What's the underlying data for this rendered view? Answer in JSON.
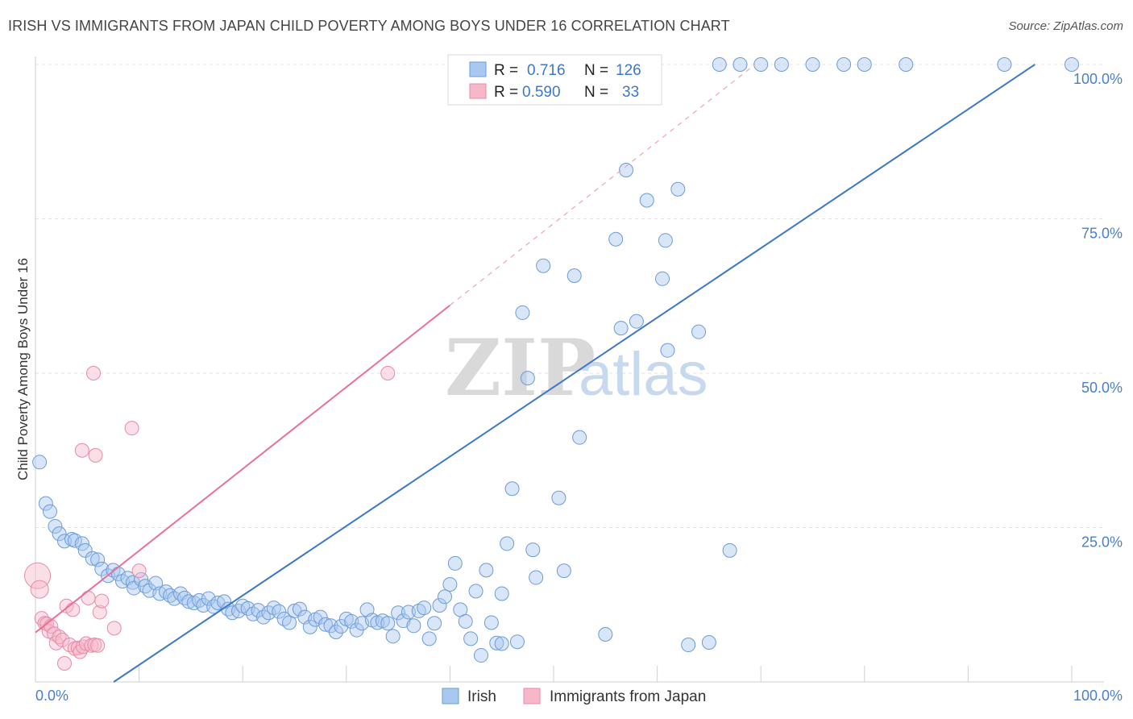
{
  "title": "IRISH VS IMMIGRANTS FROM JAPAN CHILD POVERTY AMONG BOYS UNDER 16 CORRELATION CHART",
  "source": "Source: ZipAtlas.com",
  "watermark": {
    "zip": "ZIP",
    "atlas": "atlas"
  },
  "legend": {
    "rows": [
      {
        "r_label": "R =",
        "r_value": "0.716",
        "n_label": "N =",
        "n_value": "126",
        "color": "#a9c8f0"
      },
      {
        "r_label": "R =",
        "r_value": "0.590",
        "n_label": "N =",
        "n_value": "33",
        "color": "#f6b8c9"
      }
    ]
  },
  "bottom_legend": [
    {
      "label": "Irish",
      "color": "#a9c8f0"
    },
    {
      "label": "Immigrants from Japan",
      "color": "#f6b8c9"
    }
  ],
  "chart_data": {
    "type": "scatter",
    "title": "IRISH VS IMMIGRANTS FROM JAPAN CHILD POVERTY AMONG BOYS UNDER 16 CORRELATION CHART",
    "xlabel": "",
    "ylabel": "Child Poverty Among Boys Under 16",
    "xlim": [
      0,
      100
    ],
    "ylim": [
      0,
      100
    ],
    "x_tick_labels": [
      "0.0%",
      "100.0%"
    ],
    "y_tick_labels": [
      {
        "value": 100,
        "label": "100.0%"
      },
      {
        "value": 75,
        "label": "75.0%"
      },
      {
        "value": 50,
        "label": "50.0%"
      },
      {
        "value": 25,
        "label": "25.0%"
      }
    ],
    "grid": true,
    "legend_position": "top-center",
    "colors": {
      "irish": "#3d77c8",
      "irish_fill": "#a9c8f0",
      "japan": "#e8709a",
      "japan_fill": "#f6b8c9"
    },
    "series": [
      {
        "name": "Irish",
        "r": 0.716,
        "n": 126,
        "trend": {
          "x": [
            0,
            100
          ],
          "y": [
            -8.5,
            104
          ]
        },
        "points": [
          [
            0.4,
            35.6
          ],
          [
            1.0,
            28.9
          ],
          [
            1.4,
            27.6
          ],
          [
            1.9,
            25.2
          ],
          [
            2.3,
            24.0
          ],
          [
            2.8,
            22.8
          ],
          [
            3.5,
            23.1
          ],
          [
            3.8,
            22.9
          ],
          [
            4.5,
            22.4
          ],
          [
            4.8,
            21.3
          ],
          [
            5.5,
            20.0
          ],
          [
            6.0,
            19.8
          ],
          [
            6.4,
            18.3
          ],
          [
            7.0,
            17.2
          ],
          [
            7.5,
            18.1
          ],
          [
            8.0,
            17.5
          ],
          [
            8.4,
            16.3
          ],
          [
            8.9,
            16.8
          ],
          [
            9.4,
            16.1
          ],
          [
            9.5,
            15.2
          ],
          [
            10.2,
            16.6
          ],
          [
            10.6,
            15.5
          ],
          [
            11.0,
            14.8
          ],
          [
            11.6,
            16.0
          ],
          [
            12.0,
            14.3
          ],
          [
            12.6,
            14.6
          ],
          [
            13.0,
            14.0
          ],
          [
            13.4,
            13.5
          ],
          [
            14.0,
            14.3
          ],
          [
            14.4,
            13.6
          ],
          [
            14.8,
            13.0
          ],
          [
            15.3,
            12.8
          ],
          [
            15.8,
            13.2
          ],
          [
            16.2,
            12.4
          ],
          [
            16.7,
            13.5
          ],
          [
            17.2,
            12.2
          ],
          [
            17.6,
            12.8
          ],
          [
            18.2,
            13.0
          ],
          [
            18.6,
            11.8
          ],
          [
            19.0,
            11.2
          ],
          [
            19.6,
            11.5
          ],
          [
            20.0,
            12.3
          ],
          [
            20.5,
            11.9
          ],
          [
            21.0,
            11.0
          ],
          [
            21.5,
            11.6
          ],
          [
            22.0,
            10.5
          ],
          [
            22.5,
            11.2
          ],
          [
            23.0,
            12.0
          ],
          [
            23.5,
            11.4
          ],
          [
            24.0,
            10.2
          ],
          [
            24.5,
            9.6
          ],
          [
            25.0,
            11.5
          ],
          [
            25.5,
            11.8
          ],
          [
            26.0,
            10.5
          ],
          [
            26.5,
            8.9
          ],
          [
            27.0,
            10.1
          ],
          [
            27.5,
            10.5
          ],
          [
            28.0,
            9.3
          ],
          [
            28.5,
            9.1
          ],
          [
            29.0,
            8.1
          ],
          [
            29.5,
            9.0
          ],
          [
            30.0,
            10.2
          ],
          [
            30.5,
            9.8
          ],
          [
            31.0,
            8.4
          ],
          [
            31.5,
            9.5
          ],
          [
            32.0,
            11.7
          ],
          [
            32.5,
            10.0
          ],
          [
            33.0,
            9.6
          ],
          [
            33.5,
            9.9
          ],
          [
            34.0,
            9.5
          ],
          [
            34.5,
            7.4
          ],
          [
            35.0,
            11.2
          ],
          [
            35.5,
            9.9
          ],
          [
            36.0,
            11.3
          ],
          [
            36.5,
            9.1
          ],
          [
            37.0,
            11.5
          ],
          [
            37.5,
            12.0
          ],
          [
            38.0,
            7.0
          ],
          [
            38.5,
            9.5
          ],
          [
            39.0,
            12.4
          ],
          [
            39.5,
            13.8
          ],
          [
            40.0,
            15.8
          ],
          [
            40.5,
            19.2
          ],
          [
            41.0,
            11.7
          ],
          [
            41.5,
            9.8
          ],
          [
            42.0,
            7.0
          ],
          [
            42.5,
            14.7
          ],
          [
            43.0,
            4.3
          ],
          [
            43.5,
            18.1
          ],
          [
            44.0,
            9.6
          ],
          [
            44.5,
            6.3
          ],
          [
            45.0,
            14.3
          ],
          [
            45.5,
            22.4
          ],
          [
            46.0,
            31.3
          ],
          [
            46.5,
            6.5
          ],
          [
            47.0,
            59.8
          ],
          [
            47.5,
            49.2
          ],
          [
            48.0,
            21.4
          ],
          [
            48.3,
            16.9
          ],
          [
            49.0,
            67.4
          ],
          [
            50.0,
            97.3
          ],
          [
            50.5,
            29.8
          ],
          [
            51.0,
            18.0
          ],
          [
            52.0,
            65.8
          ],
          [
            52.5,
            39.6
          ],
          [
            55.0,
            7.7
          ],
          [
            56.0,
            71.7
          ],
          [
            56.5,
            57.3
          ],
          [
            57.0,
            82.9
          ],
          [
            58.0,
            58.4
          ],
          [
            59.0,
            78.0
          ],
          [
            60.5,
            65.3
          ],
          [
            60.8,
            71.5
          ],
          [
            61.0,
            53.7
          ],
          [
            62.0,
            79.8
          ],
          [
            64.0,
            56.7
          ],
          [
            65.0,
            6.4
          ],
          [
            67.0,
            21.3
          ],
          [
            63.0,
            6.0
          ],
          [
            45.0,
            6.2
          ],
          [
            66.0,
            100.0
          ],
          [
            68.0,
            100.0
          ],
          [
            70.0,
            100.0
          ],
          [
            72.0,
            100.0
          ],
          [
            75.0,
            100.0
          ],
          [
            78.0,
            100.0
          ],
          [
            80.0,
            100.0
          ],
          [
            84.0,
            100.0
          ],
          [
            100.0,
            100.0
          ],
          [
            93.5,
            100.0
          ]
        ]
      },
      {
        "name": "Immigrants from Japan",
        "r": 0.59,
        "n": 33,
        "trend": {
          "x": [
            0,
            40
          ],
          "y": [
            8.0,
            61.0
          ]
        },
        "trend_dashed": {
          "x": [
            40,
            100
          ],
          "y": [
            61.0,
            140.5
          ]
        },
        "points": [
          [
            0.2,
            17.2
          ],
          [
            0.4,
            15.0
          ],
          [
            0.6,
            10.3
          ],
          [
            0.9,
            9.5
          ],
          [
            1.1,
            9.4
          ],
          [
            1.3,
            8.2
          ],
          [
            1.5,
            9.0
          ],
          [
            1.8,
            7.8
          ],
          [
            2.0,
            6.3
          ],
          [
            2.3,
            7.3
          ],
          [
            2.6,
            6.8
          ],
          [
            2.8,
            3.0
          ],
          [
            3.0,
            12.3
          ],
          [
            3.3,
            6.0
          ],
          [
            3.6,
            11.7
          ],
          [
            3.8,
            5.4
          ],
          [
            4.1,
            5.5
          ],
          [
            4.3,
            4.9
          ],
          [
            4.6,
            5.7
          ],
          [
            4.9,
            6.2
          ],
          [
            5.1,
            13.6
          ],
          [
            5.4,
            5.9
          ],
          [
            5.7,
            6.0
          ],
          [
            6.0,
            5.9
          ],
          [
            5.6,
            50.0
          ],
          [
            5.8,
            36.7
          ],
          [
            6.2,
            11.3
          ],
          [
            6.4,
            13.1
          ],
          [
            7.6,
            8.7
          ],
          [
            9.3,
            41.1
          ],
          [
            10.0,
            18.0
          ],
          [
            34.0,
            50.0
          ],
          [
            4.5,
            37.5
          ]
        ]
      }
    ]
  }
}
